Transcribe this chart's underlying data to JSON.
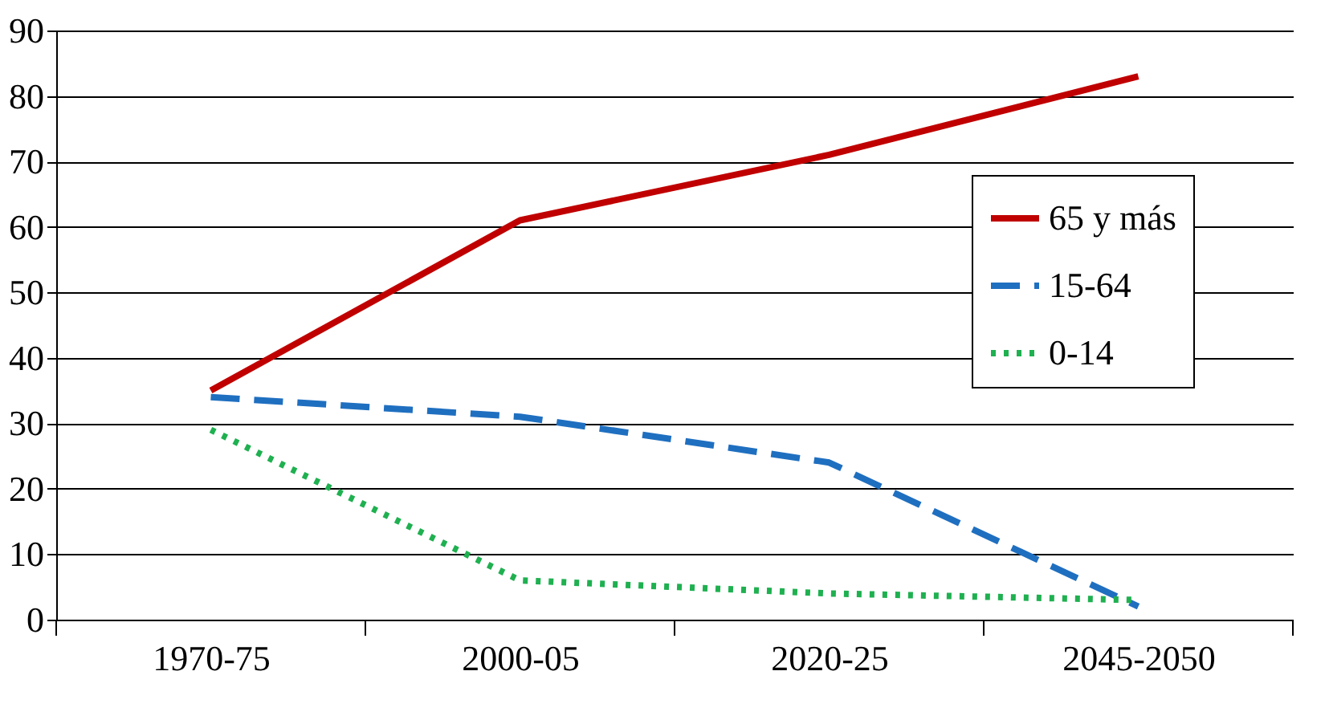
{
  "chart_data": {
    "type": "line",
    "categories": [
      "1970-75",
      "2000-05",
      "2020-25",
      "2045-2050"
    ],
    "series": [
      {
        "name": "65 y más",
        "color": "#c00000",
        "line_style": "solid",
        "values": [
          35,
          61,
          71,
          83
        ]
      },
      {
        "name": "15-64",
        "color": "#1f6fc0",
        "line_style": "dashed",
        "values": [
          34,
          31,
          24,
          2
        ]
      },
      {
        "name": "0-14",
        "color": "#1fb050",
        "line_style": "dotted",
        "values": [
          29,
          6,
          4,
          3
        ]
      }
    ],
    "ylim": [
      0,
      90
    ],
    "yticks": [
      0,
      10,
      20,
      30,
      40,
      50,
      60,
      70,
      80,
      90
    ],
    "grid": "y",
    "legend": "right",
    "marker": "none"
  }
}
